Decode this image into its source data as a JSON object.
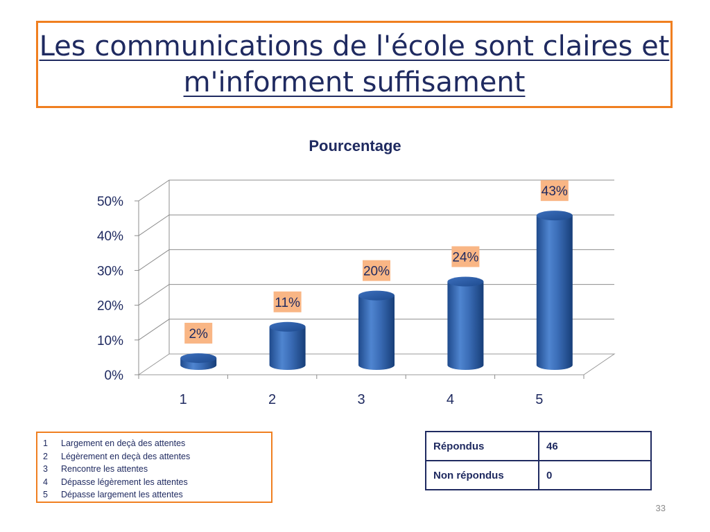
{
  "slide": {
    "title": "Les communications de l'école sont claires et m'informent suffisament",
    "page_number": "33"
  },
  "chart_data": {
    "type": "bar",
    "title": "Pourcentage",
    "categories": [
      "1",
      "2",
      "3",
      "4",
      "5"
    ],
    "values": [
      2,
      11,
      20,
      24,
      43
    ],
    "data_labels": [
      "2%",
      "11%",
      "20%",
      "24%",
      "43%"
    ],
    "y_ticks": [
      "0%",
      "10%",
      "20%",
      "30%",
      "40%",
      "50%"
    ],
    "ylim": [
      0,
      50
    ],
    "grid": true,
    "bar_color": "#3A6CB6",
    "label_bg_color": "#F9B685"
  },
  "legend": {
    "items": [
      {
        "num": "1",
        "text": "Largement en deçà des attentes"
      },
      {
        "num": "2",
        "text": "Légèrement en deçà des attentes"
      },
      {
        "num": "3",
        "text": "Rencontre les attentes"
      },
      {
        "num": "4",
        "text": "Dépasse légèrement les attentes"
      },
      {
        "num": "5",
        "text": "Dépasse largement les attentes"
      }
    ]
  },
  "stats": {
    "rows": [
      {
        "label": "Répondus",
        "value": "46"
      },
      {
        "label": "Non répondus",
        "value": "0"
      }
    ]
  }
}
